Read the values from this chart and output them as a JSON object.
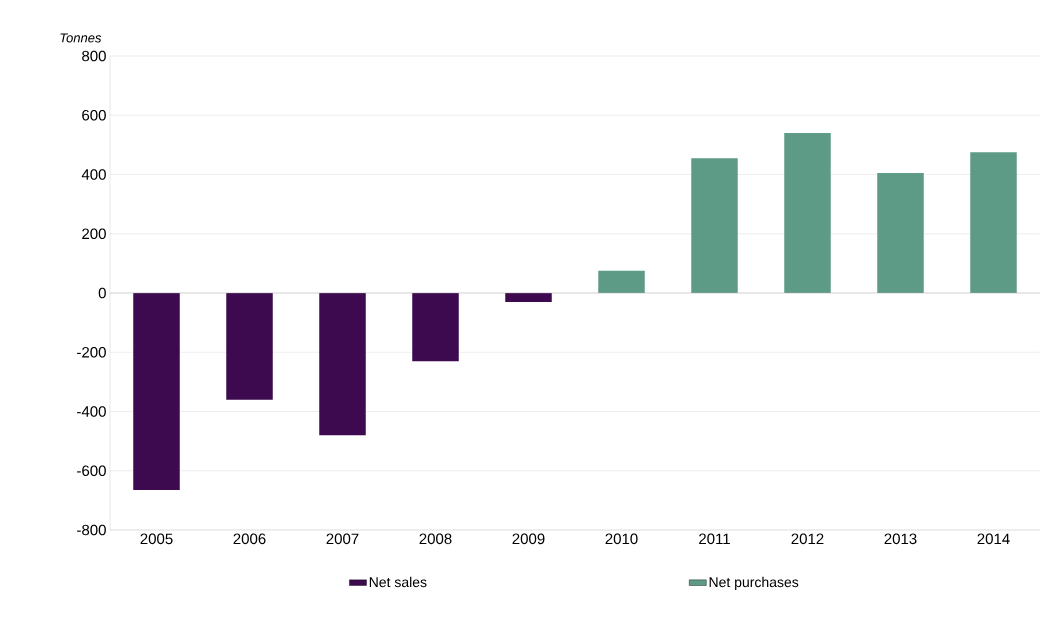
{
  "chart_data": {
    "type": "bar",
    "ylabel": "Tonnes",
    "categories": [
      "2005",
      "2006",
      "2007",
      "2008",
      "2009",
      "2010",
      "2011",
      "2012",
      "2013",
      "2014"
    ],
    "series": [
      {
        "name": "Net sales",
        "color": "#3d0a4f",
        "values": [
          -665,
          -360,
          -480,
          -230,
          -30,
          null,
          null,
          null,
          null,
          null
        ]
      },
      {
        "name": "Net purchases",
        "color": "#5e9b86",
        "values": [
          null,
          null,
          null,
          null,
          null,
          75,
          455,
          540,
          405,
          475
        ]
      }
    ],
    "ylim": [
      -800,
      800
    ],
    "yticks": [
      -800,
      -600,
      -400,
      -200,
      0,
      200,
      400,
      600,
      800
    ],
    "grid": "y",
    "legend": "bottom"
  }
}
